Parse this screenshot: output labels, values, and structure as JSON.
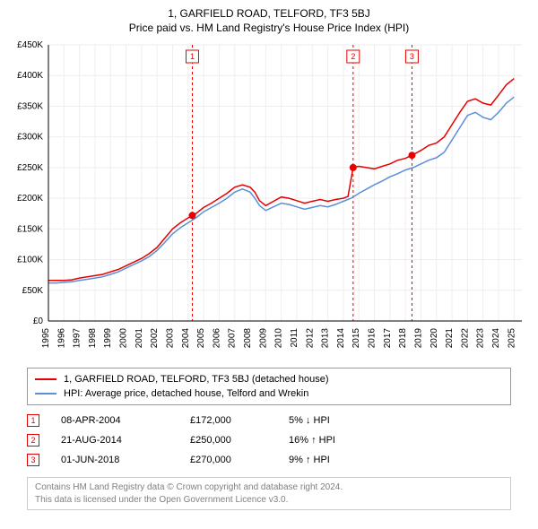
{
  "title_line1": "1, GARFIELD ROAD, TELFORD, TF3 5BJ",
  "title_line2": "Price paid vs. HM Land Registry's House Price Index (HPI)",
  "chart": {
    "type": "line",
    "background_color": "#ffffff",
    "grid_color": "#eeeeee",
    "axis_color": "#000000",
    "tick_font_size": 10,
    "x_years": [
      1995,
      1996,
      1997,
      1998,
      1999,
      2000,
      2001,
      2002,
      2003,
      2004,
      2005,
      2006,
      2007,
      2008,
      2009,
      2010,
      2011,
      2012,
      2013,
      2014,
      2015,
      2016,
      2017,
      2018,
      2019,
      2020,
      2021,
      2022,
      2023,
      2024,
      2025
    ],
    "xlim": [
      1995,
      2025.5
    ],
    "ylim": [
      0,
      450000
    ],
    "y_ticks": [
      0,
      50000,
      100000,
      150000,
      200000,
      250000,
      300000,
      350000,
      400000,
      450000
    ],
    "y_tick_labels": [
      "£0",
      "£50K",
      "£100K",
      "£150K",
      "£200K",
      "£250K",
      "£300K",
      "£350K",
      "£400K",
      "£450K"
    ],
    "series": [
      {
        "id": "price_paid",
        "label": "1, GARFIELD ROAD, TELFORD, TF3 5BJ (detached house)",
        "color": "#e60000",
        "line_width": 1.5,
        "points": [
          [
            1995.0,
            66000
          ],
          [
            1995.5,
            66000
          ],
          [
            1996,
            66000
          ],
          [
            1996.5,
            67000
          ],
          [
            1997,
            70000
          ],
          [
            1997.5,
            72000
          ],
          [
            1998,
            74000
          ],
          [
            1998.5,
            76000
          ],
          [
            1999,
            80000
          ],
          [
            1999.5,
            84000
          ],
          [
            2000,
            90000
          ],
          [
            2000.5,
            96000
          ],
          [
            2001,
            102000
          ],
          [
            2001.5,
            110000
          ],
          [
            2002,
            120000
          ],
          [
            2002.5,
            135000
          ],
          [
            2003,
            150000
          ],
          [
            2003.5,
            160000
          ],
          [
            2004,
            168000
          ],
          [
            2004.27,
            172000
          ],
          [
            2004.5,
            175000
          ],
          [
            2005,
            185000
          ],
          [
            2005.5,
            192000
          ],
          [
            2006,
            200000
          ],
          [
            2006.5,
            208000
          ],
          [
            2007,
            218000
          ],
          [
            2007.5,
            222000
          ],
          [
            2008,
            218000
          ],
          [
            2008.3,
            210000
          ],
          [
            2008.6,
            196000
          ],
          [
            2009,
            188000
          ],
          [
            2009.5,
            195000
          ],
          [
            2010,
            202000
          ],
          [
            2010.5,
            200000
          ],
          [
            2011,
            196000
          ],
          [
            2011.5,
            192000
          ],
          [
            2012,
            195000
          ],
          [
            2012.5,
            198000
          ],
          [
            2013,
            195000
          ],
          [
            2013.5,
            198000
          ],
          [
            2014,
            200000
          ],
          [
            2014.3,
            203000
          ],
          [
            2014.63,
            250000
          ],
          [
            2015,
            252000
          ],
          [
            2015.5,
            250000
          ],
          [
            2016,
            248000
          ],
          [
            2016.5,
            252000
          ],
          [
            2017,
            256000
          ],
          [
            2017.5,
            262000
          ],
          [
            2018,
            265000
          ],
          [
            2018.42,
            270000
          ],
          [
            2018.5,
            271000
          ],
          [
            2019,
            278000
          ],
          [
            2019.5,
            286000
          ],
          [
            2020,
            290000
          ],
          [
            2020.5,
            300000
          ],
          [
            2021,
            320000
          ],
          [
            2021.5,
            340000
          ],
          [
            2022,
            358000
          ],
          [
            2022.5,
            362000
          ],
          [
            2023,
            355000
          ],
          [
            2023.5,
            352000
          ],
          [
            2024,
            368000
          ],
          [
            2024.5,
            385000
          ],
          [
            2025,
            395000
          ]
        ]
      },
      {
        "id": "hpi",
        "label": "HPI: Average price, detached house, Telford and Wrekin",
        "color": "#5b8fd6",
        "line_width": 1.5,
        "points": [
          [
            1995.0,
            62000
          ],
          [
            1995.5,
            62000
          ],
          [
            1996,
            63000
          ],
          [
            1996.5,
            64000
          ],
          [
            1997,
            66000
          ],
          [
            1997.5,
            68000
          ],
          [
            1998,
            70000
          ],
          [
            1998.5,
            72000
          ],
          [
            1999,
            76000
          ],
          [
            1999.5,
            80000
          ],
          [
            2000,
            86000
          ],
          [
            2000.5,
            92000
          ],
          [
            2001,
            98000
          ],
          [
            2001.5,
            105000
          ],
          [
            2002,
            115000
          ],
          [
            2002.5,
            128000
          ],
          [
            2003,
            142000
          ],
          [
            2003.5,
            152000
          ],
          [
            2004,
            160000
          ],
          [
            2004.5,
            168000
          ],
          [
            2005,
            178000
          ],
          [
            2005.5,
            185000
          ],
          [
            2006,
            192000
          ],
          [
            2006.5,
            200000
          ],
          [
            2007,
            210000
          ],
          [
            2007.5,
            215000
          ],
          [
            2008,
            210000
          ],
          [
            2008.3,
            200000
          ],
          [
            2008.6,
            188000
          ],
          [
            2009,
            180000
          ],
          [
            2009.5,
            186000
          ],
          [
            2010,
            192000
          ],
          [
            2010.5,
            190000
          ],
          [
            2011,
            186000
          ],
          [
            2011.5,
            182000
          ],
          [
            2012,
            185000
          ],
          [
            2012.5,
            188000
          ],
          [
            2013,
            186000
          ],
          [
            2013.5,
            190000
          ],
          [
            2014,
            195000
          ],
          [
            2014.5,
            200000
          ],
          [
            2015,
            208000
          ],
          [
            2015.5,
            215000
          ],
          [
            2016,
            222000
          ],
          [
            2016.5,
            228000
          ],
          [
            2017,
            235000
          ],
          [
            2017.5,
            240000
          ],
          [
            2018,
            246000
          ],
          [
            2018.5,
            250000
          ],
          [
            2019,
            256000
          ],
          [
            2019.5,
            262000
          ],
          [
            2020,
            266000
          ],
          [
            2020.5,
            275000
          ],
          [
            2021,
            295000
          ],
          [
            2021.5,
            315000
          ],
          [
            2022,
            335000
          ],
          [
            2022.5,
            340000
          ],
          [
            2023,
            332000
          ],
          [
            2023.5,
            328000
          ],
          [
            2024,
            340000
          ],
          [
            2024.5,
            355000
          ],
          [
            2025,
            365000
          ]
        ]
      }
    ],
    "event_markers": [
      {
        "n": 1,
        "x": 2004.27,
        "y": 172000,
        "color": "#e60000"
      },
      {
        "n": 2,
        "x": 2014.63,
        "y": 250000,
        "color": "#e60000"
      },
      {
        "n": 3,
        "x": 2018.42,
        "y": 270000,
        "color": "#e60000"
      }
    ],
    "marker_box_size": 14,
    "marker_font_size": 9,
    "sale_point_radius": 4
  },
  "legend": {
    "border_color": "#999999",
    "items": [
      {
        "color": "#e60000",
        "label": "1, GARFIELD ROAD, TELFORD, TF3 5BJ (detached house)"
      },
      {
        "color": "#5b8fd6",
        "label": "HPI: Average price, detached house, Telford and Wrekin"
      }
    ]
  },
  "events": [
    {
      "n": "1",
      "color": "#e60000",
      "date": "08-APR-2004",
      "price": "£172,000",
      "diff": "5% ↓ HPI"
    },
    {
      "n": "2",
      "color": "#e60000",
      "date": "21-AUG-2014",
      "price": "£250,000",
      "diff": "16% ↑ HPI"
    },
    {
      "n": "3",
      "color": "#e60000",
      "date": "01-JUN-2018",
      "price": "£270,000",
      "diff": "9% ↑ HPI"
    }
  ],
  "attribution": {
    "line1": "Contains HM Land Registry data © Crown copyright and database right 2024.",
    "line2": "This data is licensed under the Open Government Licence v3.0.",
    "border_color": "#cccccc",
    "text_color": "#808080"
  }
}
